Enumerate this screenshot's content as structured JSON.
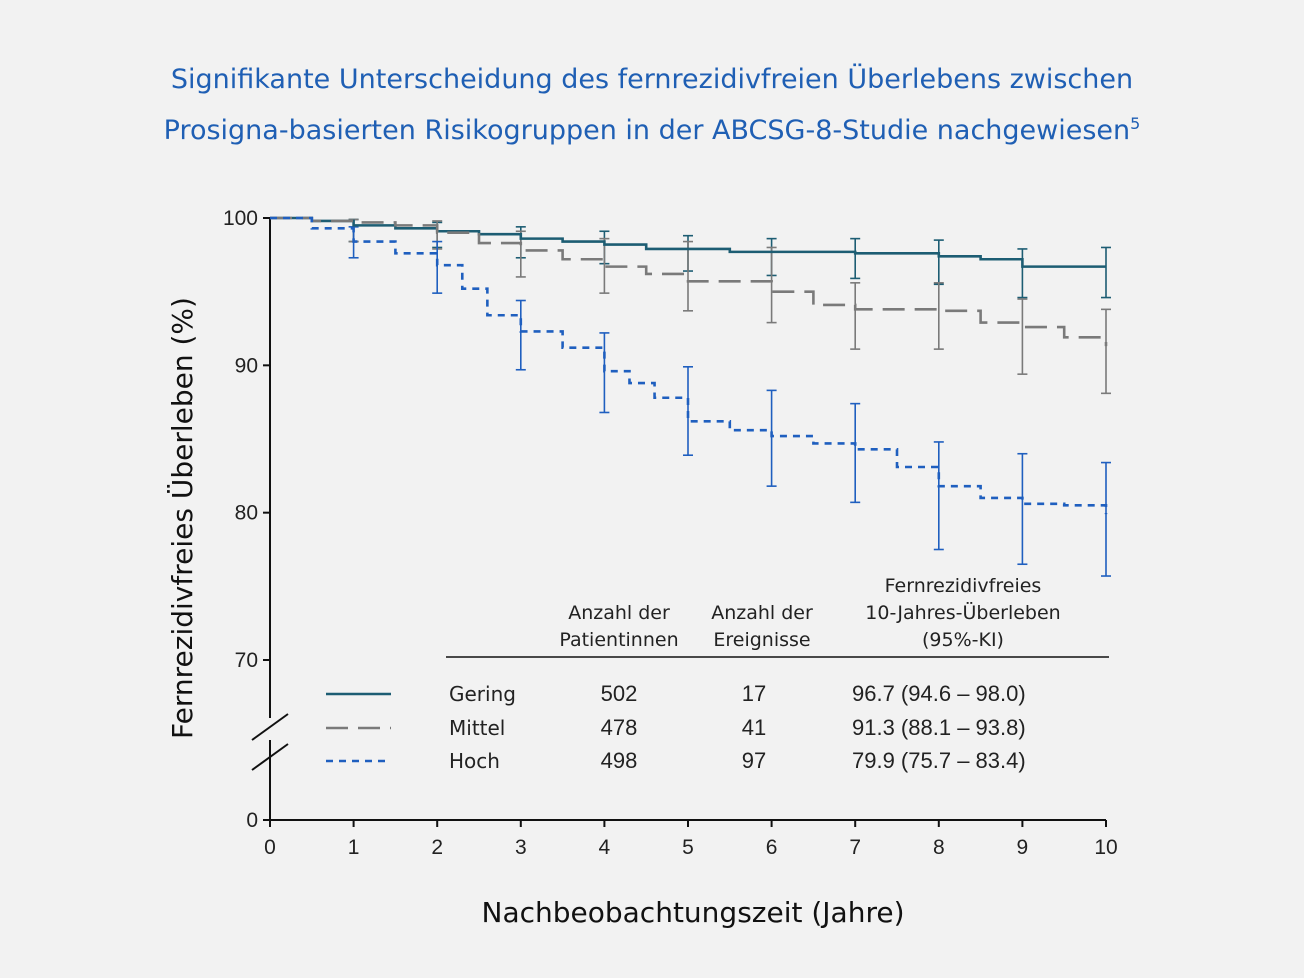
{
  "title": {
    "line1": "Signifikante Unterscheidung des fernrezidivfreien Überlebens zwischen",
    "line2": "Prosigna-basierten Risikogruppen in der ABCSG-8-Studie nachgewiesen",
    "footnote": "5"
  },
  "chart_data": {
    "type": "line",
    "xlabel": "Nachbeobachtungszeit (Jahre)",
    "ylabel": "Fernrezidivfreies Überleben (%)",
    "xlim": [
      0,
      10
    ],
    "x_ticks": [
      "0",
      "1",
      "2",
      "3",
      "4",
      "5",
      "6",
      "7",
      "8",
      "9",
      "10"
    ],
    "y_ticks_upper": [
      "100",
      "90",
      "80",
      "70"
    ],
    "y_tick_lower": "0",
    "y_axis_break": true,
    "series": [
      {
        "name": "Gering",
        "color": "#1d5d73",
        "dash": "solid",
        "x": [
          0,
          0.5,
          1,
          1.5,
          2,
          2.5,
          3,
          3.5,
          4,
          4.5,
          5,
          5.5,
          6,
          6.5,
          7,
          7.5,
          8,
          8.5,
          9,
          9.5,
          10
        ],
        "y": [
          100,
          99.8,
          99.5,
          99.3,
          99.1,
          98.9,
          98.6,
          98.4,
          98.2,
          97.9,
          97.9,
          97.7,
          97.7,
          97.7,
          97.6,
          97.6,
          97.4,
          97.2,
          96.7,
          96.7,
          96.7
        ],
        "ci_x": [
          1,
          2,
          3,
          4,
          5,
          6,
          7,
          8,
          9,
          10
        ],
        "ci_low": [
          98.4,
          98.0,
          97.3,
          96.9,
          96.4,
          96.1,
          95.9,
          95.5,
          94.6,
          94.6
        ],
        "ci_high": [
          99.9,
          99.7,
          99.4,
          99.1,
          98.8,
          98.6,
          98.6,
          98.5,
          97.9,
          98.0
        ]
      },
      {
        "name": "Mittel",
        "color": "#7a7a7a",
        "dash": "long",
        "x": [
          0,
          0.5,
          1,
          1.5,
          2,
          2.5,
          3,
          3.5,
          4,
          4.5,
          5,
          5.5,
          6,
          6.5,
          7,
          7.5,
          8,
          8.5,
          9,
          9.5,
          10
        ],
        "y": [
          100,
          99.8,
          99.7,
          99.5,
          99.0,
          98.3,
          97.8,
          97.2,
          96.7,
          96.2,
          95.7,
          95.7,
          95.0,
          94.1,
          93.8,
          93.8,
          93.7,
          92.9,
          92.6,
          91.9,
          91.3
        ],
        "ci_x": [
          1,
          2,
          3,
          4,
          5,
          6,
          7,
          8,
          9,
          10
        ],
        "ci_low": [
          98.4,
          97.9,
          96.0,
          94.9,
          93.7,
          92.9,
          91.1,
          91.1,
          89.4,
          88.1
        ],
        "ci_high": [
          99.9,
          99.8,
          99.1,
          98.6,
          98.4,
          98.0,
          95.6,
          95.6,
          94.5,
          93.8
        ]
      },
      {
        "name": "Hoch",
        "color": "#1f5fbf",
        "dash": "short",
        "x": [
          0,
          0.5,
          1,
          1.5,
          2,
          2.3,
          2.6,
          3,
          3.5,
          4,
          4.3,
          4.6,
          5,
          5.5,
          6,
          6.5,
          7,
          7.5,
          8,
          8.5,
          9,
          9.5,
          10
        ],
        "y": [
          100,
          99.3,
          98.4,
          97.6,
          96.8,
          95.2,
          93.4,
          92.3,
          91.2,
          89.6,
          88.8,
          87.8,
          86.2,
          85.6,
          85.2,
          84.7,
          84.3,
          83.1,
          81.8,
          81.0,
          80.6,
          80.5,
          79.9
        ],
        "ci_x": [
          1,
          2,
          3,
          4,
          5,
          6,
          7,
          8,
          9,
          10
        ],
        "ci_low": [
          97.3,
          94.9,
          89.7,
          86.8,
          83.9,
          81.8,
          80.7,
          77.5,
          76.5,
          75.7
        ],
        "ci_high": [
          99.4,
          98.4,
          94.4,
          92.2,
          89.9,
          88.3,
          87.4,
          84.8,
          84.0,
          83.4
        ]
      }
    ],
    "table": {
      "headers": [
        [
          "Anzahl der",
          "Patientinnen"
        ],
        [
          "Anzahl der",
          "Ereignisse"
        ],
        [
          "Fernrezidivfreies",
          "10-Jahres-Überleben",
          "(95%-KI)"
        ]
      ],
      "rows": [
        {
          "label": "Gering",
          "patients": "502",
          "events": "17",
          "survival": "96.7 (94.6 – 98.0)"
        },
        {
          "label": "Mittel",
          "patients": "478",
          "events": "41",
          "survival": "91.3 (88.1 – 93.8)"
        },
        {
          "label": "Hoch",
          "patients": "498",
          "events": "97",
          "survival": "79.9 (75.7 – 83.4)"
        }
      ]
    }
  }
}
